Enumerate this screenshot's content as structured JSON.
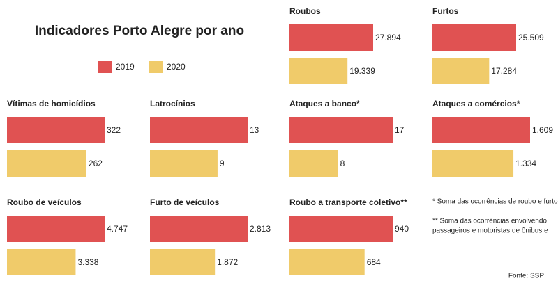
{
  "title": "Indicadores Porto Alegre por ano",
  "chart_data": [
    {
      "type": "bar",
      "title": "Roubos",
      "series": [
        {
          "name": "2019",
          "color": "#e05252",
          "values": [
            27894
          ],
          "value_labels": [
            "27.894"
          ]
        },
        {
          "name": "2020",
          "color": "#f0cb6a",
          "values": [
            19339
          ],
          "value_labels": [
            "19.339"
          ]
        }
      ]
    },
    {
      "type": "bar",
      "title": "Furtos",
      "series": [
        {
          "name": "2019",
          "color": "#e05252",
          "values": [
            25509
          ],
          "value_labels": [
            "25.509"
          ]
        },
        {
          "name": "2020",
          "color": "#f0cb6a",
          "values": [
            17284
          ],
          "value_labels": [
            "17.284"
          ]
        }
      ]
    },
    {
      "type": "bar",
      "title": "Vítimas de homicídios",
      "series": [
        {
          "name": "2019",
          "color": "#e05252",
          "values": [
            322
          ]
        },
        {
          "name": "2020",
          "color": "#f0cb6a",
          "values": [
            262
          ]
        }
      ]
    },
    {
      "type": "bar",
      "title": "Latrocínios",
      "series": [
        {
          "name": "2019",
          "color": "#e05252",
          "values": [
            13
          ]
        },
        {
          "name": "2020",
          "color": "#f0cb6a",
          "values": [
            9
          ]
        }
      ]
    },
    {
      "type": "bar",
      "title": "Ataques a banco*",
      "series": [
        {
          "name": "2019",
          "color": "#e05252",
          "values": [
            17
          ]
        },
        {
          "name": "2020",
          "color": "#f0cb6a",
          "values": [
            8
          ]
        }
      ]
    },
    {
      "type": "bar",
      "title": "Ataques a comércios*",
      "series": [
        {
          "name": "2019",
          "color": "#e05252",
          "values": [
            1609
          ],
          "value_labels": [
            "1.609"
          ]
        },
        {
          "name": "2020",
          "color": "#f0cb6a",
          "values": [
            1334
          ],
          "value_labels": [
            "1.334"
          ]
        }
      ]
    },
    {
      "type": "bar",
      "title": "Roubo de veículos",
      "series": [
        {
          "name": "2019",
          "color": "#e05252",
          "values": [
            4747
          ],
          "value_labels": [
            "4.747"
          ]
        },
        {
          "name": "2020",
          "color": "#f0cb6a",
          "values": [
            3338
          ],
          "value_labels": [
            "3.338"
          ]
        }
      ]
    },
    {
      "type": "bar",
      "title": "Furto de veículos",
      "series": [
        {
          "name": "2019",
          "color": "#e05252",
          "values": [
            2813
          ],
          "value_labels": [
            "2.813"
          ]
        },
        {
          "name": "2020",
          "color": "#f0cb6a",
          "values": [
            1872
          ],
          "value_labels": [
            "1.872"
          ]
        }
      ]
    },
    {
      "type": "bar",
      "title": "Roubo a transporte coletivo**",
      "series": [
        {
          "name": "2019",
          "color": "#e05252",
          "values": [
            940
          ]
        },
        {
          "name": "2020",
          "color": "#f0cb6a",
          "values": [
            684
          ]
        }
      ]
    }
  ],
  "notes": [
    [
      "* Soma das ocorrências de roubo e furto."
    ],
    [
      "** Soma das ocorrências envolvendo",
      "passageiros e motoristas de ônibus e"
    ]
  ],
  "source": "Fonte: SSP"
}
